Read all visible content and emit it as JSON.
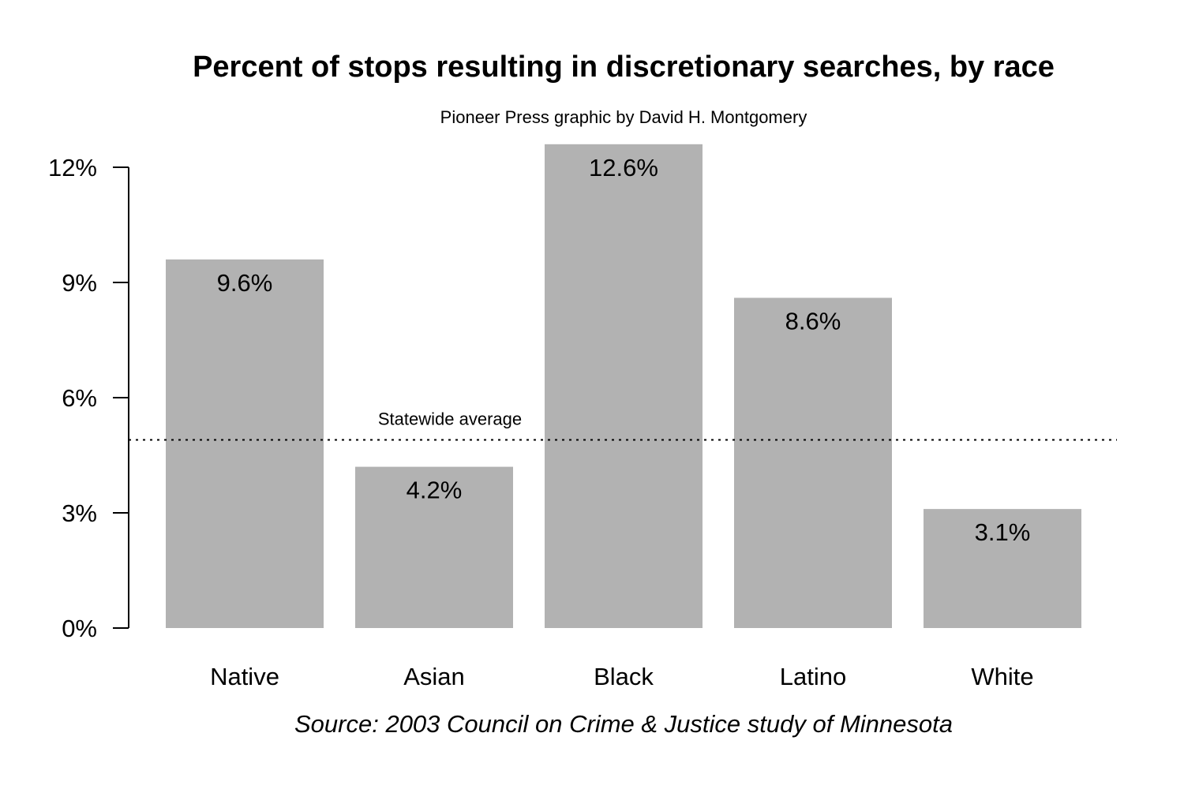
{
  "chart_data": {
    "type": "bar",
    "title": "Percent of stops resulting in discretionary searches, by race",
    "subtitle": "Pioneer Press graphic by David H. Montgomery",
    "source": "Source: 2003 Council on Crime & Justice study of Minnesota",
    "categories": [
      "Native",
      "Asian",
      "Black",
      "Latino",
      "White"
    ],
    "values": [
      9.6,
      4.2,
      12.6,
      8.6,
      3.1
    ],
    "value_labels": [
      "9.6%",
      "4.2%",
      "12.6%",
      "8.6%",
      "3.1%"
    ],
    "yticks": [
      0,
      3,
      6,
      9,
      12
    ],
    "ytick_labels": [
      "0%",
      "3%",
      "6%",
      "9%",
      "12%"
    ],
    "ylim": [
      0,
      12
    ],
    "xlabel": "",
    "ylabel": "",
    "reference_line": {
      "label": "Statewide average",
      "value": 4.9,
      "style": "dotted"
    },
    "grid": false,
    "legend": "none",
    "colors": {
      "bar": "#b2b2b2",
      "text": "#000000",
      "axis": "#000000",
      "background": "#ffffff"
    }
  }
}
